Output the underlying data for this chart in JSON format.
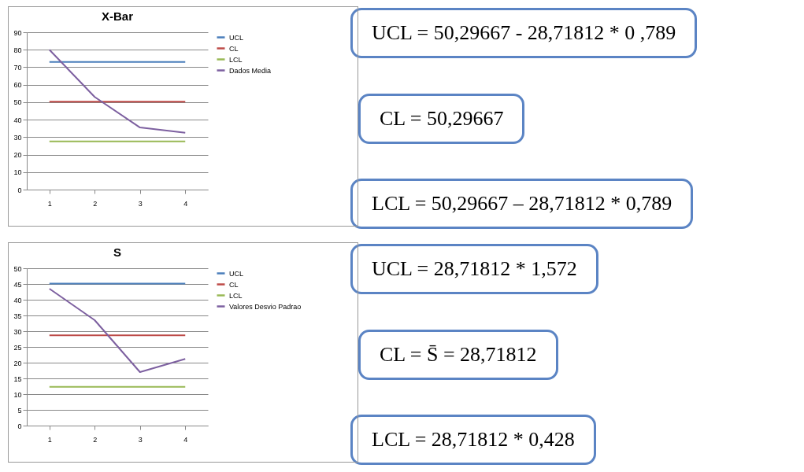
{
  "chart_data": [
    {
      "type": "line",
      "title": "X-Bar",
      "categories": [
        "1",
        "2",
        "3",
        "4"
      ],
      "series": [
        {
          "name": "UCL",
          "color": "#4a7ebb",
          "values": [
            73,
            73,
            73,
            73
          ]
        },
        {
          "name": "CL",
          "color": "#be4b48",
          "values": [
            50.3,
            50.3,
            50.3,
            50.3
          ]
        },
        {
          "name": "LCL",
          "color": "#98b954",
          "values": [
            27.6,
            27.6,
            27.6,
            27.6
          ]
        },
        {
          "name": "Dados Media",
          "color": "#7d60a0",
          "values": [
            80,
            53,
            35.5,
            32.5
          ]
        }
      ],
      "ylim": [
        0,
        90
      ],
      "yticks": [
        0,
        10,
        20,
        30,
        40,
        50,
        60,
        70,
        80,
        90
      ],
      "grid": "y",
      "legend": "right",
      "annotations": [
        "UCL = 50,29667 - 28,71812 * 0 ,789",
        "CL = 50,29667",
        "LCL = 50,29667 – 28,71812 * 0,789"
      ]
    },
    {
      "type": "line",
      "title": "S",
      "categories": [
        "1",
        "2",
        "3",
        "4"
      ],
      "series": [
        {
          "name": "UCL",
          "color": "#4a7ebb",
          "values": [
            45.1,
            45.1,
            45.1,
            45.1
          ]
        },
        {
          "name": "CL",
          "color": "#be4b48",
          "values": [
            28.7,
            28.7,
            28.7,
            28.7
          ]
        },
        {
          "name": "LCL",
          "color": "#98b954",
          "values": [
            12.3,
            12.3,
            12.3,
            12.3
          ]
        },
        {
          "name": "Valores Desvio Padrao",
          "color": "#7d60a0",
          "values": [
            43.5,
            33.5,
            17,
            21.2
          ]
        }
      ],
      "ylim": [
        0,
        50
      ],
      "yticks": [
        0,
        5,
        10,
        15,
        20,
        25,
        30,
        35,
        40,
        45,
        50
      ],
      "grid": "y",
      "legend": "right",
      "annotations": [
        "UCL = 28,71812 * 1,572",
        "CL = S̄ = 28,71812",
        "LCL = 28,71812 * 0,428"
      ]
    }
  ]
}
